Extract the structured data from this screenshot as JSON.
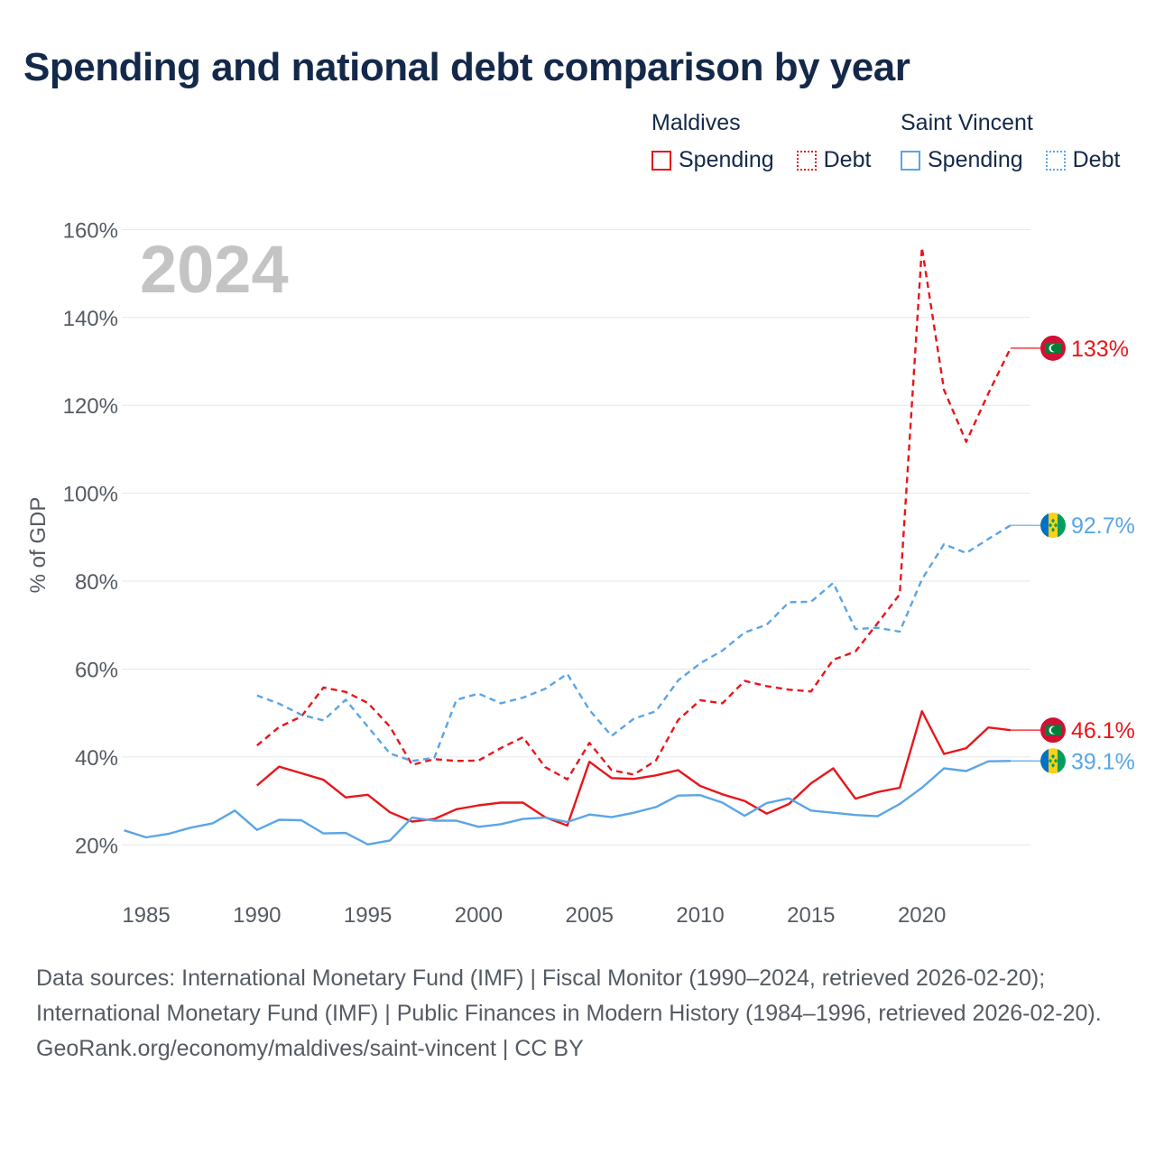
{
  "title": "Spending and national debt comparison by year",
  "legend": [
    {
      "group": "Maldives",
      "color": "#e8161b",
      "items": [
        "Spending",
        "Debt"
      ]
    },
    {
      "group": "Saint Vincent",
      "color": "#5aa5e6",
      "items": [
        "Spending",
        "Debt"
      ]
    }
  ],
  "chart_data": {
    "type": "line",
    "year_watermark": "2024",
    "ylabel": "% of GDP",
    "xlim": [
      1983.9,
      2024.9
    ],
    "ylim": [
      10,
      165
    ],
    "x_ticks": [
      1985,
      1990,
      1995,
      2000,
      2005,
      2010,
      2015,
      2020
    ],
    "y_ticks": [
      20,
      40,
      60,
      80,
      100,
      120,
      140,
      160
    ],
    "series": [
      {
        "name": "Maldives Spending",
        "country": "Maldives",
        "metric": "Spending",
        "color": "#e8161b",
        "dashed": false,
        "x": [
          1990,
          1991,
          1992,
          1993,
          1994,
          1995,
          1996,
          1997,
          1998,
          1999,
          2000,
          2001,
          2002,
          2003,
          2004,
          2005,
          2006,
          2007,
          2008,
          2009,
          2010,
          2011,
          2012,
          2013,
          2014,
          2015,
          2016,
          2017,
          2018,
          2019,
          2020,
          2021,
          2022,
          2023,
          2024
        ],
        "y": [
          33.5,
          37.8,
          36.3,
          34.8,
          30.8,
          31.4,
          27.4,
          25.3,
          25.9,
          28.1,
          29.0,
          29.6,
          29.6,
          26.3,
          24.4,
          38.9,
          35.2,
          35.0,
          35.8,
          37.0,
          33.4,
          31.5,
          30.0,
          27.1,
          29.3,
          34.0,
          37.4,
          30.5,
          32.0,
          33.0,
          50.4,
          40.7,
          42.0,
          46.7,
          46.1
        ],
        "end_label": "46.1%"
      },
      {
        "name": "Maldives Debt",
        "country": "Maldives",
        "metric": "Debt",
        "color": "#e8161b",
        "dashed": true,
        "x": [
          1990,
          1991,
          1992,
          1993,
          1994,
          1995,
          1996,
          1997,
          1998,
          1999,
          2000,
          2001,
          2002,
          2003,
          2004,
          2005,
          2006,
          2007,
          2008,
          2009,
          2010,
          2011,
          2012,
          2013,
          2014,
          2015,
          2016,
          2017,
          2018,
          2019,
          2020,
          2021,
          2022,
          2023,
          2024
        ],
        "y": [
          42.6,
          46.8,
          49.2,
          55.8,
          54.8,
          52.3,
          46.9,
          38.2,
          39.5,
          39.1,
          39.2,
          42.0,
          44.5,
          37.7,
          34.9,
          43.2,
          37.0,
          36.0,
          39.2,
          48.4,
          52.9,
          52.2,
          57.3,
          56.1,
          55.3,
          54.9,
          62.1,
          64.0,
          70.4,
          77.0,
          155.9,
          123.5,
          111.7,
          122.7,
          133.0
        ],
        "end_label": "133%"
      },
      {
        "name": "Saint Vincent Spending",
        "country": "Saint Vincent",
        "metric": "Spending",
        "color": "#5aa5e6",
        "dashed": false,
        "x": [
          1984,
          1985,
          1986,
          1987,
          1988,
          1989,
          1990,
          1991,
          1992,
          1993,
          1994,
          1995,
          1996,
          1997,
          1998,
          1999,
          2000,
          2001,
          2002,
          2003,
          2004,
          2005,
          2006,
          2007,
          2008,
          2009,
          2010,
          2011,
          2012,
          2013,
          2014,
          2015,
          2016,
          2017,
          2018,
          2019,
          2020,
          2021,
          2022,
          2023,
          2024
        ],
        "y": [
          23.3,
          21.7,
          22.5,
          23.9,
          24.9,
          27.8,
          23.4,
          25.7,
          25.6,
          22.6,
          22.7,
          20.1,
          21.0,
          26.2,
          25.5,
          25.5,
          24.1,
          24.7,
          25.9,
          26.2,
          25.2,
          26.9,
          26.3,
          27.3,
          28.6,
          31.2,
          31.3,
          29.6,
          26.6,
          29.5,
          30.6,
          27.8,
          27.3,
          26.8,
          26.5,
          29.3,
          33.0,
          37.4,
          36.8,
          39.0,
          39.1
        ],
        "end_label": "39.1%"
      },
      {
        "name": "Saint Vincent Debt",
        "country": "Saint Vincent",
        "metric": "Debt",
        "color": "#5aa5e6",
        "dashed": true,
        "x": [
          1990,
          1991,
          1992,
          1993,
          1994,
          1995,
          1996,
          1997,
          1998,
          1999,
          2000,
          2001,
          2002,
          2003,
          2004,
          2005,
          2006,
          2007,
          2008,
          2009,
          2010,
          2011,
          2012,
          2013,
          2014,
          2015,
          2016,
          2017,
          2018,
          2019,
          2020,
          2021,
          2022,
          2023,
          2024
        ],
        "y": [
          54.0,
          52.1,
          49.6,
          48.3,
          53.0,
          46.9,
          40.8,
          39.1,
          39.8,
          53.0,
          54.4,
          52.2,
          53.5,
          55.5,
          58.9,
          50.7,
          44.8,
          48.7,
          50.4,
          57.4,
          61.3,
          64.2,
          68.3,
          70.1,
          75.2,
          75.3,
          79.6,
          69.1,
          69.4,
          68.5,
          80.4,
          88.4,
          86.4,
          89.6,
          92.7
        ],
        "end_label": "92.7%"
      }
    ]
  },
  "footer": {
    "sources": "Data sources: International Monetary Fund (IMF) | Fiscal Monitor (1990–2024, retrieved 2026-02-20); International Monetary Fund (IMF) | Public Finances in Modern History (1984–1996, retrieved 2026-02-20).",
    "site": "GeoRank.org/economy/maldives/saint-vincent | CC BY"
  }
}
